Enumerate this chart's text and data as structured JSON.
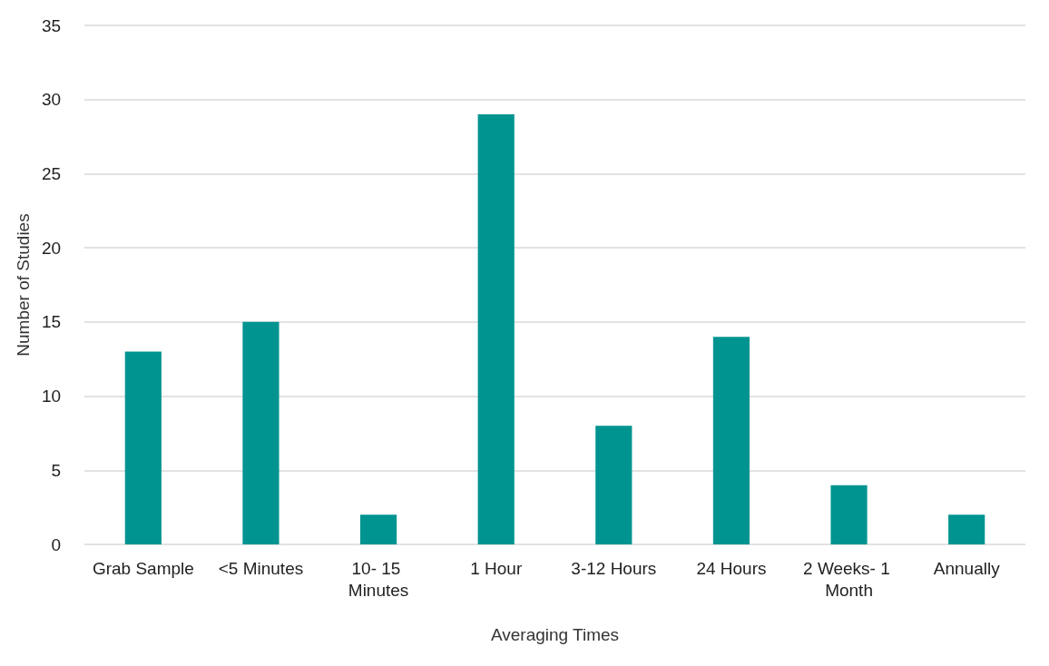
{
  "chart_data": {
    "type": "bar",
    "xlabel": "Averaging Times",
    "ylabel": "Number of Studies",
    "categories": [
      "Grab Sample",
      "<5 Minutes",
      "10- 15 Minutes",
      "1 Hour",
      "3-12 Hours",
      "24 Hours",
      "2 Weeks- 1 Month",
      "Annually"
    ],
    "values": [
      13,
      15,
      2,
      29,
      8,
      14,
      4,
      2
    ],
    "color": "#009490",
    "ylim": [
      0,
      35
    ],
    "yticks": [
      0,
      5,
      10,
      15,
      20,
      25,
      30,
      35
    ],
    "grid": "y"
  }
}
